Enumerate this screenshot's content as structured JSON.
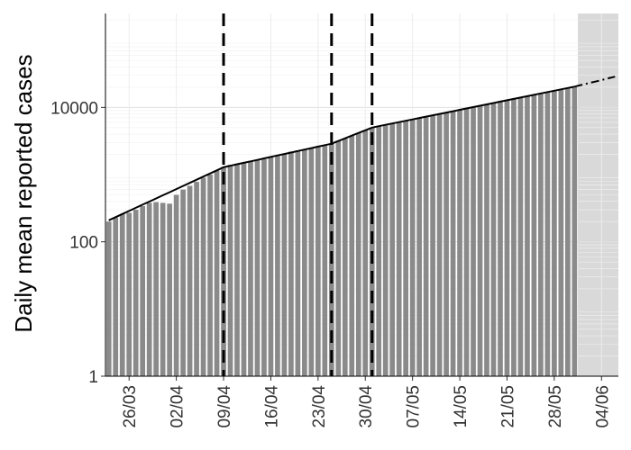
{
  "chart_data": {
    "type": "bar",
    "y_label": "Daily mean reported cases",
    "log_scale": true,
    "grid": true,
    "ylim": [
      1,
      250000
    ],
    "yticks": [
      1,
      100,
      10000
    ],
    "x": [
      "23/03",
      "24/03",
      "25/03",
      "26/03",
      "27/03",
      "28/03",
      "29/03",
      "30/03",
      "31/03",
      "01/04",
      "02/04",
      "03/04",
      "04/04",
      "05/04",
      "06/04",
      "07/04",
      "08/04",
      "09/04",
      "10/04",
      "11/04",
      "12/04",
      "13/04",
      "14/04",
      "15/04",
      "16/04",
      "17/04",
      "18/04",
      "19/04",
      "20/04",
      "21/04",
      "22/04",
      "23/04",
      "24/04",
      "25/04",
      "26/04",
      "27/04",
      "28/04",
      "29/04",
      "30/04",
      "01/05",
      "02/05",
      "03/05",
      "04/05",
      "05/05",
      "06/05",
      "07/05",
      "08/05",
      "09/05",
      "10/05",
      "11/05",
      "12/05",
      "13/05",
      "14/05",
      "15/05",
      "16/05",
      "17/05",
      "18/05",
      "19/05",
      "20/05",
      "21/05",
      "22/05",
      "23/05",
      "24/05",
      "25/05",
      "26/05",
      "27/05",
      "28/05",
      "29/05",
      "30/05",
      "31/05",
      "01/06",
      "02/06",
      "03/06",
      "04/06",
      "05/06",
      "06/06"
    ],
    "xticks": [
      "26/03",
      "02/04",
      "09/04",
      "16/04",
      "23/04",
      "30/04",
      "07/05",
      "14/05",
      "21/05",
      "28/05",
      "04/06"
    ],
    "color": "#8a8a8a",
    "values": [
      200,
      230,
      260,
      270,
      300,
      340,
      380,
      390,
      380,
      370,
      500,
      600,
      680,
      780,
      900,
      1000,
      1150,
      1300,
      1400,
      1450,
      1500,
      1600,
      1650,
      1700,
      1800,
      1900,
      2000,
      2200,
      2300,
      2400,
      2500,
      2600,
      2700,
      2900,
      3200,
      3500,
      3800,
      4200,
      4600,
      5000,
      5200,
      5500,
      5800,
      6000,
      6300,
      6600,
      6900,
      7300,
      7600,
      8000,
      8400,
      8800,
      9200,
      9600,
      10000,
      10500,
      11000,
      11500,
      12100,
      12700,
      13300,
      13900,
      14600,
      15300,
      16000,
      16700,
      17500,
      18300,
      19200,
      20000,
      null,
      null,
      null,
      null,
      null,
      null
    ],
    "fit_line": {
      "color": "#000000",
      "values": [
        209,
        233,
        259,
        288,
        321,
        357,
        397,
        442,
        492,
        547,
        609,
        678,
        754,
        839,
        934,
        1039,
        1156,
        1288,
        1355,
        1425,
        1498,
        1576,
        1657,
        1743,
        1833,
        1928,
        2027,
        2132,
        2242,
        2358,
        2480,
        2608,
        2743,
        2884,
        3162,
        3467,
        3802,
        4169,
        4571,
        5012,
        5252,
        5504,
        5767,
        6043,
        6333,
        6636,
        6954,
        7287,
        7636,
        8002,
        8385,
        8787,
        9207,
        9648,
        10110,
        10594,
        11102,
        11633,
        12190,
        12774,
        13386,
        14027,
        14699,
        15403,
        16141,
        16914,
        17724,
        18573,
        19462,
        20393,
        null,
        null,
        null,
        null,
        null,
        null
      ]
    },
    "projection": {
      "color": "#000000",
      "values": [
        null,
        null,
        null,
        null,
        null,
        null,
        null,
        null,
        null,
        null,
        null,
        null,
        null,
        null,
        null,
        null,
        null,
        null,
        null,
        null,
        null,
        null,
        null,
        null,
        null,
        null,
        null,
        null,
        null,
        null,
        null,
        null,
        null,
        null,
        null,
        null,
        null,
        null,
        null,
        null,
        null,
        null,
        null,
        null,
        null,
        null,
        null,
        null,
        null,
        null,
        null,
        null,
        null,
        null,
        null,
        null,
        null,
        null,
        null,
        null,
        null,
        null,
        null,
        null,
        null,
        null,
        null,
        null,
        null,
        20393,
        21600,
        22800,
        24100,
        25500,
        27100,
        28700
      ]
    },
    "changepoints": [
      "09/04",
      "25/04",
      "01/05"
    ],
    "shaded_from": "01/06",
    "shade_color": "#d9d9d9"
  }
}
